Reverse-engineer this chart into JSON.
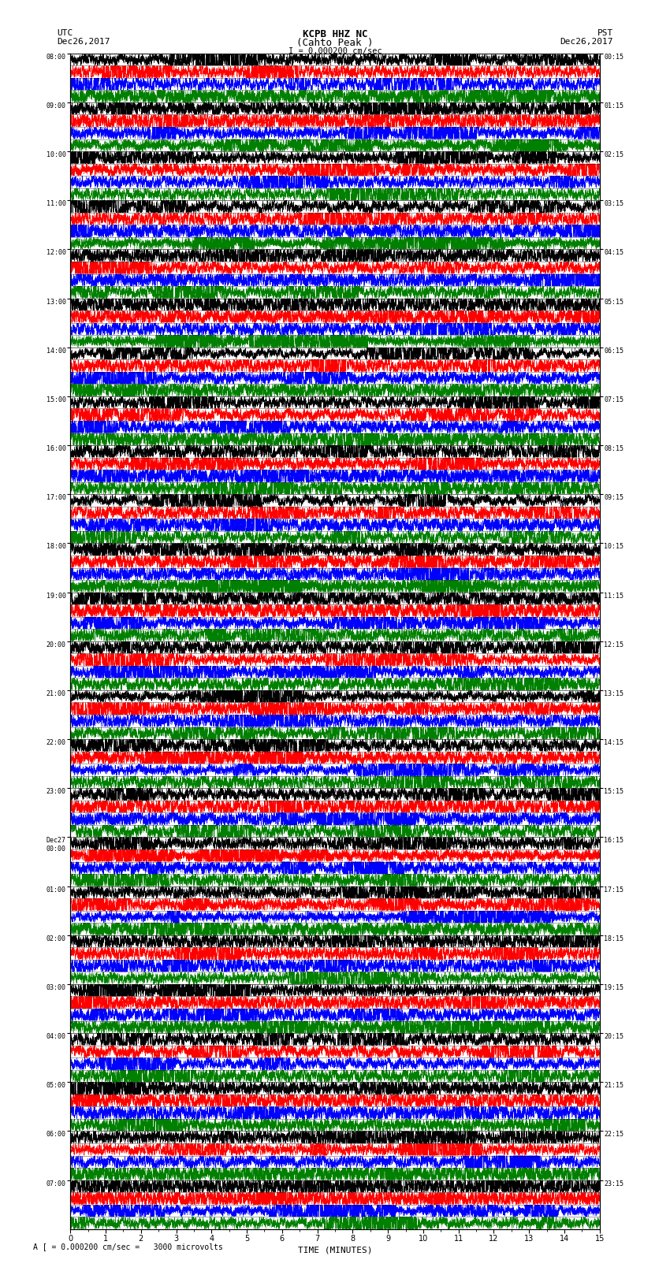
{
  "title_line1": "KCPB HHZ NC",
  "title_line2": "(Cahto Peak )",
  "scale_label": "I = 0.000200 cm/sec",
  "left_header_line1": "UTC",
  "left_header_line2": "Dec26,2017",
  "right_header_line1": "PST",
  "right_header_line2": "Dec26,2017",
  "bottom_label": "TIME (MINUTES)",
  "scale_note": "A [ = 0.000200 cm/sec =   3000 microvolts",
  "utc_times": [
    "08:00",
    "09:00",
    "10:00",
    "11:00",
    "12:00",
    "13:00",
    "14:00",
    "15:00",
    "16:00",
    "17:00",
    "18:00",
    "19:00",
    "20:00",
    "21:00",
    "22:00",
    "23:00",
    "Dec27\n00:00",
    "01:00",
    "02:00",
    "03:00",
    "04:00",
    "05:00",
    "06:00",
    "07:00"
  ],
  "pst_times": [
    "00:15",
    "01:15",
    "02:15",
    "03:15",
    "04:15",
    "05:15",
    "06:15",
    "07:15",
    "08:15",
    "09:15",
    "10:15",
    "11:15",
    "12:15",
    "13:15",
    "14:15",
    "15:15",
    "16:15",
    "17:15",
    "18:15",
    "19:15",
    "20:15",
    "21:15",
    "22:15",
    "23:15"
  ],
  "num_traces": 24,
  "minutes_per_trace": 15,
  "colors": [
    "black",
    "red",
    "blue",
    "green"
  ],
  "num_subtraces": 4,
  "bg_color": "white",
  "x_ticks": [
    0,
    1,
    2,
    3,
    4,
    5,
    6,
    7,
    8,
    9,
    10,
    11,
    12,
    13,
    14,
    15
  ],
  "seed": 42
}
